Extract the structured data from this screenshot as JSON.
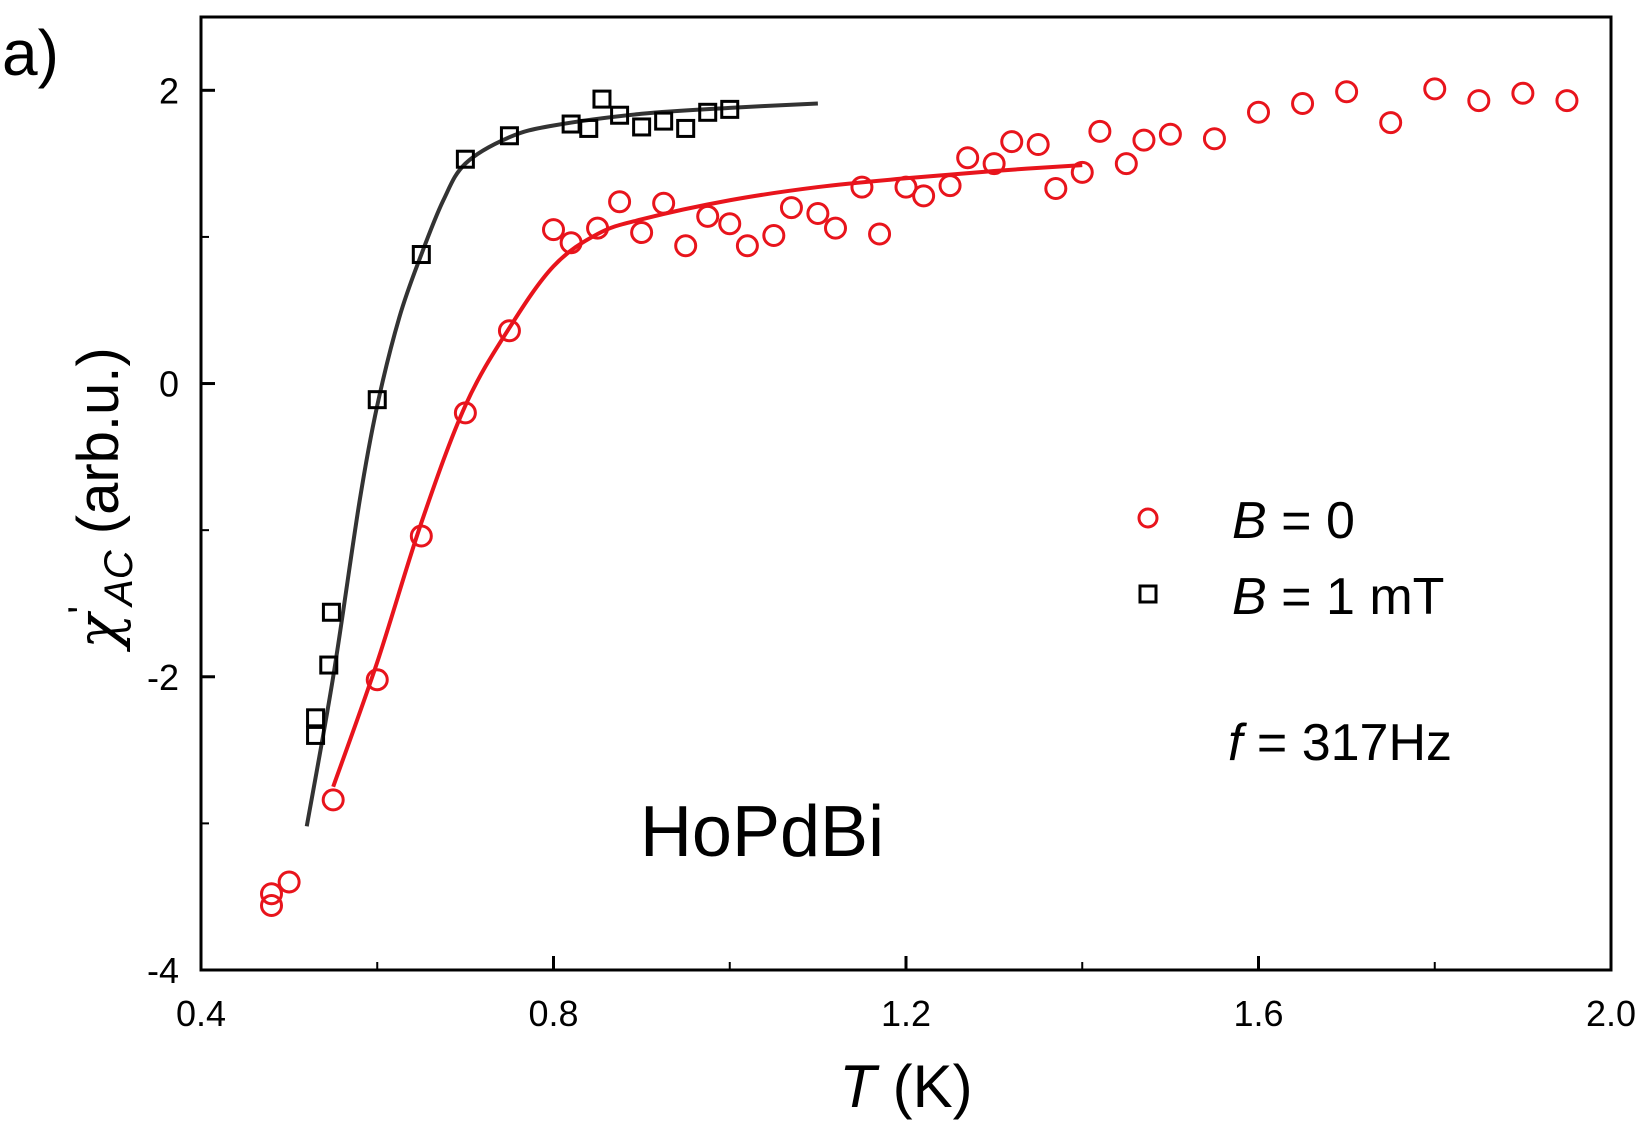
{
  "panel_label": "a)",
  "chart_data": {
    "type": "scatter",
    "x_axis": {
      "label_italic": "T",
      "label_unit": " (K)",
      "range": [
        0.4,
        2.0
      ],
      "ticks": [
        0.4,
        0.8,
        1.2,
        1.6,
        2.0
      ],
      "tick_labels": [
        "0.4",
        "0.8",
        "1.2",
        "1.6",
        "2.0"
      ]
    },
    "y_axis": {
      "label_symbol": "χ",
      "label_prime": "'",
      "label_subscript": "AC",
      "label_unit": " (arb.u.)",
      "range": [
        -4,
        2.5
      ],
      "ticks": [
        -4,
        -2,
        0,
        2
      ],
      "tick_labels": [
        "-4",
        "-2",
        "0",
        "2"
      ]
    },
    "annotations": {
      "sample": "HoPdBi",
      "frequency_italic": "f",
      "frequency_value": " = 317Hz"
    },
    "legend": {
      "placement": "right-middle",
      "entries": [
        {
          "italic": "B",
          "text": " = 0",
          "marker": "circle",
          "color": "#e8141c"
        },
        {
          "italic": "B",
          "text": " = 1 mT",
          "marker": "square",
          "color": "#000000"
        }
      ]
    },
    "series": [
      {
        "name": "B = 0",
        "marker": "circle",
        "color": "#e8141c",
        "points": [
          [
            0.48,
            -3.48
          ],
          [
            0.48,
            -3.56
          ],
          [
            0.5,
            -3.4
          ],
          [
            0.55,
            -2.84
          ],
          [
            0.6,
            -2.02
          ],
          [
            0.65,
            -1.04
          ],
          [
            0.7,
            -0.2
          ],
          [
            0.75,
            0.36
          ],
          [
            0.8,
            1.05
          ],
          [
            0.82,
            0.96
          ],
          [
            0.85,
            1.06
          ],
          [
            0.875,
            1.24
          ],
          [
            0.9,
            1.03
          ],
          [
            0.925,
            1.23
          ],
          [
            0.95,
            0.94
          ],
          [
            0.975,
            1.14
          ],
          [
            1.0,
            1.09
          ],
          [
            1.02,
            0.94
          ],
          [
            1.05,
            1.01
          ],
          [
            1.07,
            1.2
          ],
          [
            1.1,
            1.16
          ],
          [
            1.12,
            1.06
          ],
          [
            1.15,
            1.34
          ],
          [
            1.17,
            1.02
          ],
          [
            1.2,
            1.34
          ],
          [
            1.22,
            1.28
          ],
          [
            1.25,
            1.35
          ],
          [
            1.27,
            1.54
          ],
          [
            1.3,
            1.5
          ],
          [
            1.32,
            1.65
          ],
          [
            1.35,
            1.63
          ],
          [
            1.37,
            1.33
          ],
          [
            1.4,
            1.44
          ],
          [
            1.42,
            1.72
          ],
          [
            1.45,
            1.5
          ],
          [
            1.47,
            1.66
          ],
          [
            1.5,
            1.7
          ],
          [
            1.55,
            1.67
          ],
          [
            1.6,
            1.85
          ],
          [
            1.65,
            1.91
          ],
          [
            1.7,
            1.99
          ],
          [
            1.75,
            1.78
          ],
          [
            1.8,
            2.01
          ],
          [
            1.85,
            1.93
          ],
          [
            1.9,
            1.98
          ],
          [
            1.95,
            1.93
          ]
        ],
        "fit_line": [
          [
            0.55,
            -2.75
          ],
          [
            0.6,
            -1.9
          ],
          [
            0.65,
            -0.95
          ],
          [
            0.7,
            -0.15
          ],
          [
            0.75,
            0.38
          ],
          [
            0.8,
            0.8
          ],
          [
            0.85,
            1.02
          ],
          [
            0.9,
            1.12
          ],
          [
            1.0,
            1.25
          ],
          [
            1.1,
            1.34
          ],
          [
            1.2,
            1.4
          ],
          [
            1.3,
            1.45
          ],
          [
            1.4,
            1.49
          ]
        ]
      },
      {
        "name": "B = 1 mT",
        "marker": "square",
        "color": "#000000",
        "points": [
          [
            0.53,
            -2.28
          ],
          [
            0.53,
            -2.4
          ],
          [
            0.545,
            -1.92
          ],
          [
            0.548,
            -1.56
          ],
          [
            0.6,
            -0.11
          ],
          [
            0.65,
            0.88
          ],
          [
            0.7,
            1.53
          ],
          [
            0.75,
            1.69
          ],
          [
            0.82,
            1.77
          ],
          [
            0.84,
            1.74
          ],
          [
            0.855,
            1.94
          ],
          [
            0.875,
            1.83
          ],
          [
            0.9,
            1.75
          ],
          [
            0.925,
            1.79
          ],
          [
            0.95,
            1.74
          ],
          [
            0.975,
            1.85
          ],
          [
            1.0,
            1.87
          ]
        ],
        "fit_line": [
          [
            0.52,
            -3.02
          ],
          [
            0.55,
            -2.0
          ],
          [
            0.58,
            -0.8
          ],
          [
            0.6,
            -0.15
          ],
          [
            0.625,
            0.45
          ],
          [
            0.65,
            0.88
          ],
          [
            0.675,
            1.25
          ],
          [
            0.7,
            1.5
          ],
          [
            0.75,
            1.68
          ],
          [
            0.8,
            1.76
          ],
          [
            0.9,
            1.84
          ],
          [
            1.0,
            1.88
          ],
          [
            1.1,
            1.91
          ]
        ]
      }
    ]
  }
}
